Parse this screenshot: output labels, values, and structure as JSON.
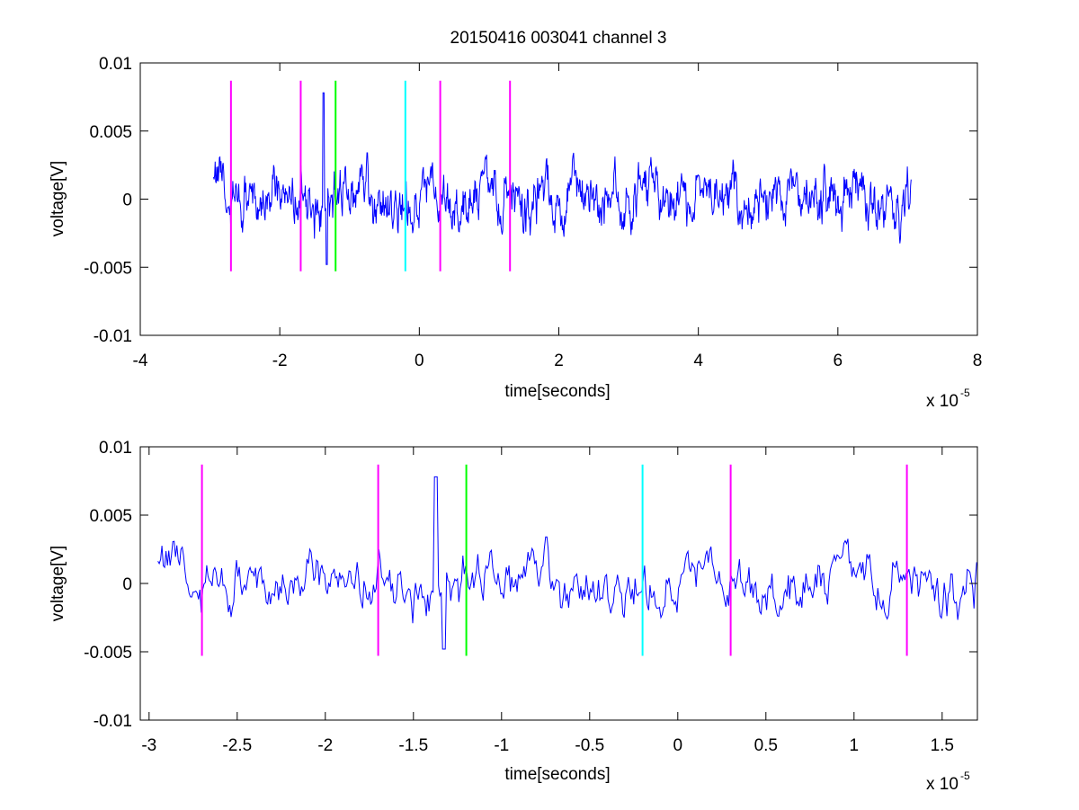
{
  "figure": {
    "title": "20150416 003041 channel 3"
  },
  "chart_data": [
    {
      "type": "line",
      "title": "20150416 003041 channel 3",
      "xlabel": "time[seconds]",
      "ylabel": "voltage[V]",
      "x_scale_label": "x 10",
      "x_scale_exponent": "-5",
      "xlim": [
        -4,
        8
      ],
      "ylim": [
        -0.01,
        0.01
      ],
      "xticks": [
        -4,
        -2,
        0,
        2,
        4,
        6,
        8
      ],
      "xtick_labels": [
        "-4",
        "-2",
        "0",
        "2",
        "4",
        "6",
        "8"
      ],
      "yticks": [
        0.01,
        0.005,
        0,
        -0.005,
        -0.01
      ],
      "ytick_labels": [
        "0.01",
        "0.005",
        "0",
        "-0.005",
        "-0.01"
      ],
      "grid": false,
      "signal": {
        "color": "#0000ff",
        "x_range": [
          -2.95,
          7.05
        ],
        "amplitude_range": [
          -0.0048,
          0.0078
        ]
      },
      "markers": [
        {
          "x": -2.7,
          "color": "#ff00ff",
          "ymin": -0.0053,
          "ymax": 0.0087
        },
        {
          "x": -1.7,
          "color": "#ff00ff",
          "ymin": -0.0053,
          "ymax": 0.0087
        },
        {
          "x": -1.2,
          "color": "#00ff00",
          "ymin": -0.0053,
          "ymax": 0.0087
        },
        {
          "x": -0.2,
          "color": "#00ffff",
          "ymin": -0.0053,
          "ymax": 0.0087
        },
        {
          "x": 0.3,
          "color": "#ff00ff",
          "ymin": -0.0053,
          "ymax": 0.0087
        },
        {
          "x": 1.3,
          "color": "#ff00ff",
          "ymin": -0.0053,
          "ymax": 0.0087
        }
      ]
    },
    {
      "type": "line",
      "title": "",
      "xlabel": "time[seconds]",
      "ylabel": "voltage[V]",
      "x_scale_label": "x 10",
      "x_scale_exponent": "-5",
      "xlim": [
        -3.05,
        1.7
      ],
      "ylim": [
        -0.01,
        0.01
      ],
      "xticks": [
        -3,
        -2.5,
        -2,
        -1.5,
        -1,
        -0.5,
        0,
        0.5,
        1,
        1.5
      ],
      "xtick_labels": [
        "-3",
        "-2.5",
        "-2",
        "-1.5",
        "-1",
        "-0.5",
        "0",
        "0.5",
        "1",
        "1.5"
      ],
      "yticks": [
        0.01,
        0.005,
        0,
        -0.005,
        -0.01
      ],
      "ytick_labels": [
        "0.01",
        "0.005",
        "0",
        "-0.005",
        "-0.01"
      ],
      "grid": false,
      "signal": {
        "color": "#0000ff",
        "x_range": [
          -2.95,
          1.7
        ],
        "amplitude_range": [
          -0.0048,
          0.0078
        ]
      },
      "markers": [
        {
          "x": -2.7,
          "color": "#ff00ff",
          "ymin": -0.0053,
          "ymax": 0.0087
        },
        {
          "x": -1.7,
          "color": "#ff00ff",
          "ymin": -0.0053,
          "ymax": 0.0087
        },
        {
          "x": -1.2,
          "color": "#00ff00",
          "ymin": -0.0053,
          "ymax": 0.0087
        },
        {
          "x": -0.2,
          "color": "#00ffff",
          "ymin": -0.0053,
          "ymax": 0.0087
        },
        {
          "x": 0.3,
          "color": "#ff00ff",
          "ymin": -0.0053,
          "ymax": 0.0087
        },
        {
          "x": 1.3,
          "color": "#ff00ff",
          "ymin": -0.0053,
          "ymax": 0.0087
        }
      ]
    }
  ]
}
